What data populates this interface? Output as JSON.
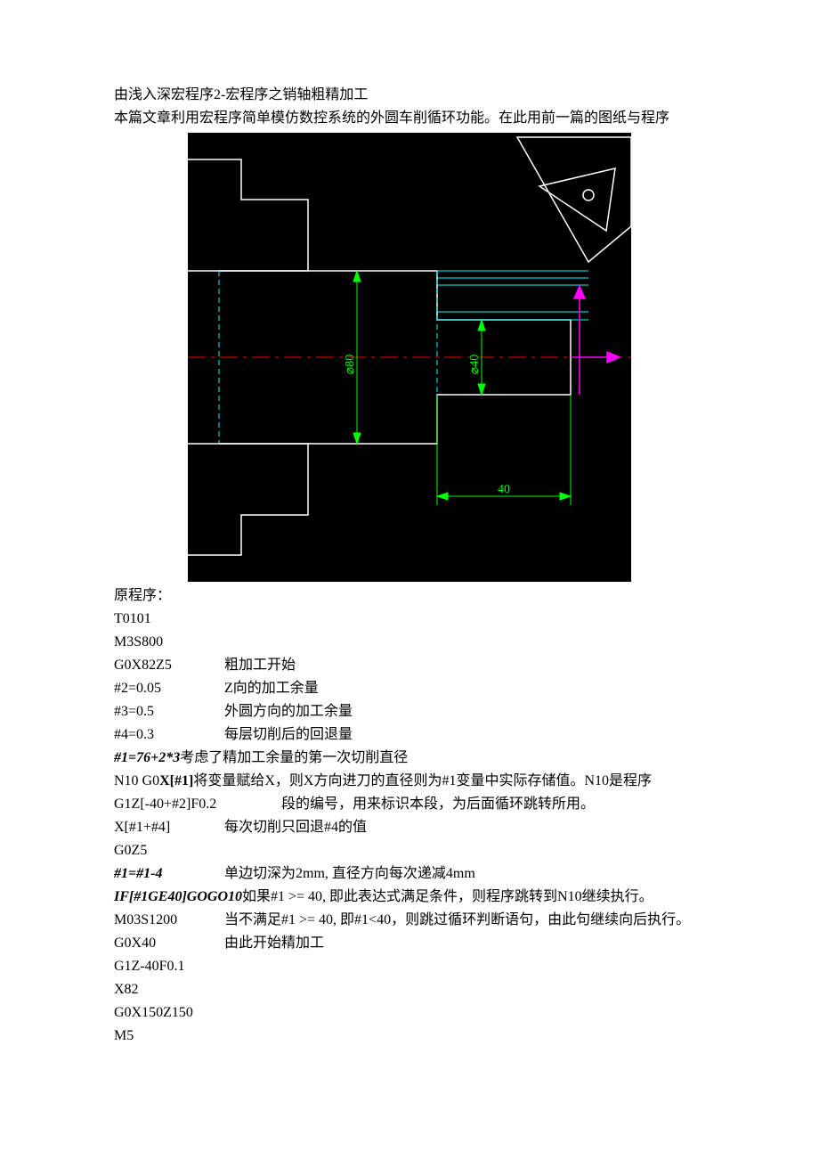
{
  "title": "由浅入深宏程序2-宏程序之销轴粗精加工",
  "intro": "本篇文章利用宏程序简单模仿数控系统的外圆车削循环功能。在此用前一篇的图纸与程序",
  "diagram": {
    "background": "#000000",
    "outline_color": "#ffffff",
    "centerline_color": "#ff0000",
    "construction_color": "#00ffff",
    "dimension_color": "#00ff00",
    "arrow_color": "#ff00ff",
    "dim_80": "80",
    "dim_40_dia": "40",
    "dim_40_len": "40",
    "dia_symbol": "⌀"
  },
  "section_label": "原程序：",
  "code": [
    {
      "cmd": "T0101",
      "comment": ""
    },
    {
      "cmd": "M3S800",
      "comment": ""
    },
    {
      "cmd": "G0X82Z5",
      "comment": "粗加工开始"
    },
    {
      "cmd": "#2=0.05",
      "comment": "Z向的加工余量"
    },
    {
      "cmd": "#3=0.5",
      "comment": "外圆方向的加工余量"
    },
    {
      "cmd": "#4=0.3",
      "comment": "每层切削后的回退量"
    }
  ],
  "line7_cmd": "#1=76+2*3",
  "line7_comment": "考虑了精加工余量的第一次切削直径",
  "line8_prefix": "N10 G0",
  "line8_bold": "X[#1]",
  "line8_comment": "将变量赋给X，则X方向进刀的直径则为#1变量中实际存储值。N10是程序",
  "line9_cmd": "G1Z[-40+#2]F0.2",
  "line9_comment": "段的编号，用来标识本段，为后面循环跳转所用。",
  "line10_cmd": "X[#1+#4]",
  "line10_comment": "每次切削只回退#4的值",
  "line11_cmd": "G0Z5",
  "line12_cmd": "#1=#1-4",
  "line12_comment": "单边切深为2mm, 直径方向每次递减4mm",
  "line13_cmd": "IF[#1GE40]GOGO10",
  "line13_comment": "如果#1 >= 40, 即此表达式满足条件，则程序跳转到N10继续执行。",
  "line14_cmd": "M03S1200",
  "line14_comment": "当不满足#1 >= 40, 即#1<40，则跳过循环判断语句，由此句继续向后执行。",
  "line15_cmd": "G0X40",
  "line15_comment": "由此开始精加工",
  "tail": [
    "G1Z-40F0.1",
    "X82",
    "G0X150Z150",
    "M5"
  ]
}
